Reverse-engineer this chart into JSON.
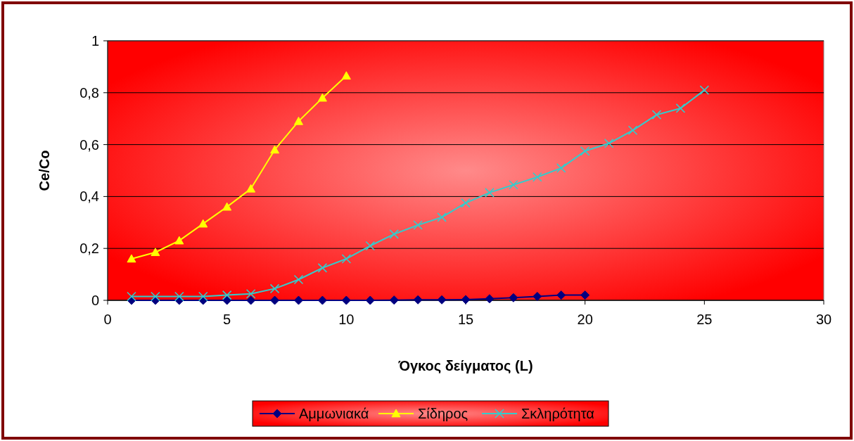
{
  "chart_data": {
    "type": "line",
    "xlabel": "Όγκος δείγματος (L)",
    "ylabel": "Ce/Co",
    "xlim": [
      0,
      30
    ],
    "xticks": [
      0,
      5,
      10,
      15,
      20,
      25,
      30
    ],
    "ylim": [
      0,
      1
    ],
    "yticks": [
      {
        "value": 0,
        "label": "0"
      },
      {
        "value": 0.2,
        "label": "0,2"
      },
      {
        "value": 0.4,
        "label": "0,4"
      },
      {
        "value": 0.6,
        "label": "0,6"
      },
      {
        "value": 0.8,
        "label": "0,8"
      },
      {
        "value": 1,
        "label": "1"
      }
    ],
    "grid": "y",
    "legend": "bottom",
    "line_style": "solid",
    "series": [
      {
        "name": "Αμμωνιακά",
        "color": "#000080",
        "marker": "diamond",
        "x": [
          1,
          2,
          3,
          4,
          5,
          6,
          7,
          8,
          9,
          10,
          11,
          12,
          13,
          14,
          15,
          16,
          17,
          18,
          19,
          20
        ],
        "values": [
          0,
          0,
          0,
          0,
          0,
          0,
          0,
          0,
          0,
          0,
          0,
          0.001,
          0.002,
          0.002,
          0.003,
          0.006,
          0.01,
          0.015,
          0.02,
          0.02
        ]
      },
      {
        "name": "Σίδηρος",
        "color": "#ffff00",
        "marker": "triangle",
        "x": [
          1,
          2,
          3,
          4,
          5,
          6,
          7,
          8,
          9,
          10
        ],
        "values": [
          0.16,
          0.185,
          0.23,
          0.295,
          0.36,
          0.43,
          0.58,
          0.69,
          0.78,
          0.865
        ]
      },
      {
        "name": "Σκληρότητα",
        "color": "#33cccc",
        "marker": "cross",
        "x": [
          1,
          2,
          3,
          4,
          5,
          6,
          7,
          8,
          9,
          10,
          11,
          12,
          13,
          14,
          15,
          16,
          17,
          18,
          19,
          20,
          21,
          22,
          23,
          24,
          25
        ],
        "values": [
          0.015,
          0.015,
          0.015,
          0.015,
          0.02,
          0.025,
          0.045,
          0.08,
          0.125,
          0.16,
          0.21,
          0.255,
          0.29,
          0.32,
          0.375,
          0.415,
          0.445,
          0.475,
          0.51,
          0.575,
          0.605,
          0.655,
          0.715,
          0.74,
          0.81
        ]
      }
    ]
  }
}
